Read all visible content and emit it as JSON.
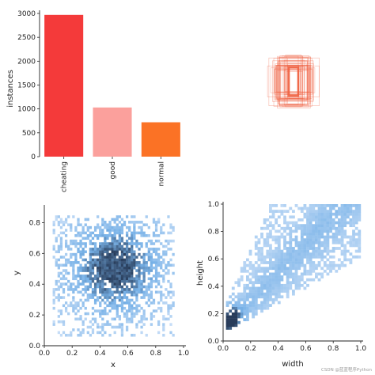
{
  "chart_data": [
    {
      "type": "bar",
      "title": "",
      "xlabel": "",
      "ylabel": "instances",
      "ylim": [
        0,
        3000
      ],
      "yticks": [
        0,
        500,
        1000,
        1500,
        2000,
        2500,
        3000
      ],
      "categories": [
        "cheating",
        "good",
        "normal"
      ],
      "values": [
        2970,
        1030,
        720
      ],
      "colors": [
        "#f43a3a",
        "#fba09c",
        "#fb7225"
      ]
    },
    {
      "type": "scatter",
      "title": "",
      "xlabel": "",
      "ylabel": "",
      "description": "overlapping bounding-box outlines centred in unit square",
      "color": "#f06040",
      "axes_visible": false
    },
    {
      "type": "heatmap",
      "title": "",
      "xlabel": "x",
      "ylabel": "y",
      "xlim": [
        0,
        1.0
      ],
      "ylim": [
        0,
        0.9
      ],
      "xticks": [
        0.0,
        0.2,
        0.4,
        0.6,
        0.8,
        1.0
      ],
      "xtick_labels": [
        "0.0",
        "0.2",
        "0.4",
        "0.6",
        "0.8",
        "1.0"
      ],
      "yticks": [
        0.0,
        0.2,
        0.4,
        0.6,
        0.8
      ],
      "ytick_labels": [
        "0.0",
        "0.2",
        "0.4",
        "0.6",
        "0.8"
      ],
      "density_center": [
        0.5,
        0.5
      ],
      "color": "#3a8fd9"
    },
    {
      "type": "heatmap",
      "title": "",
      "xlabel": "width",
      "ylabel": "height",
      "xlim": [
        0,
        1.0
      ],
      "ylim": [
        0,
        1.0
      ],
      "xticks": [
        0.0,
        0.2,
        0.4,
        0.6,
        0.8,
        1.0
      ],
      "xtick_labels": [
        "0.0",
        "0.2",
        "0.4",
        "0.6",
        "0.8",
        "1.0"
      ],
      "yticks": [
        0.0,
        0.2,
        0.4,
        0.6,
        0.8,
        1.0
      ],
      "ytick_labels": [
        "0.0",
        "0.2",
        "0.4",
        "0.6",
        "0.8",
        "1.0"
      ],
      "density_center": [
        0.05,
        0.15
      ],
      "color": "#3a8fd9"
    }
  ],
  "watermark": "CSDN @蓝蓝程序Python"
}
